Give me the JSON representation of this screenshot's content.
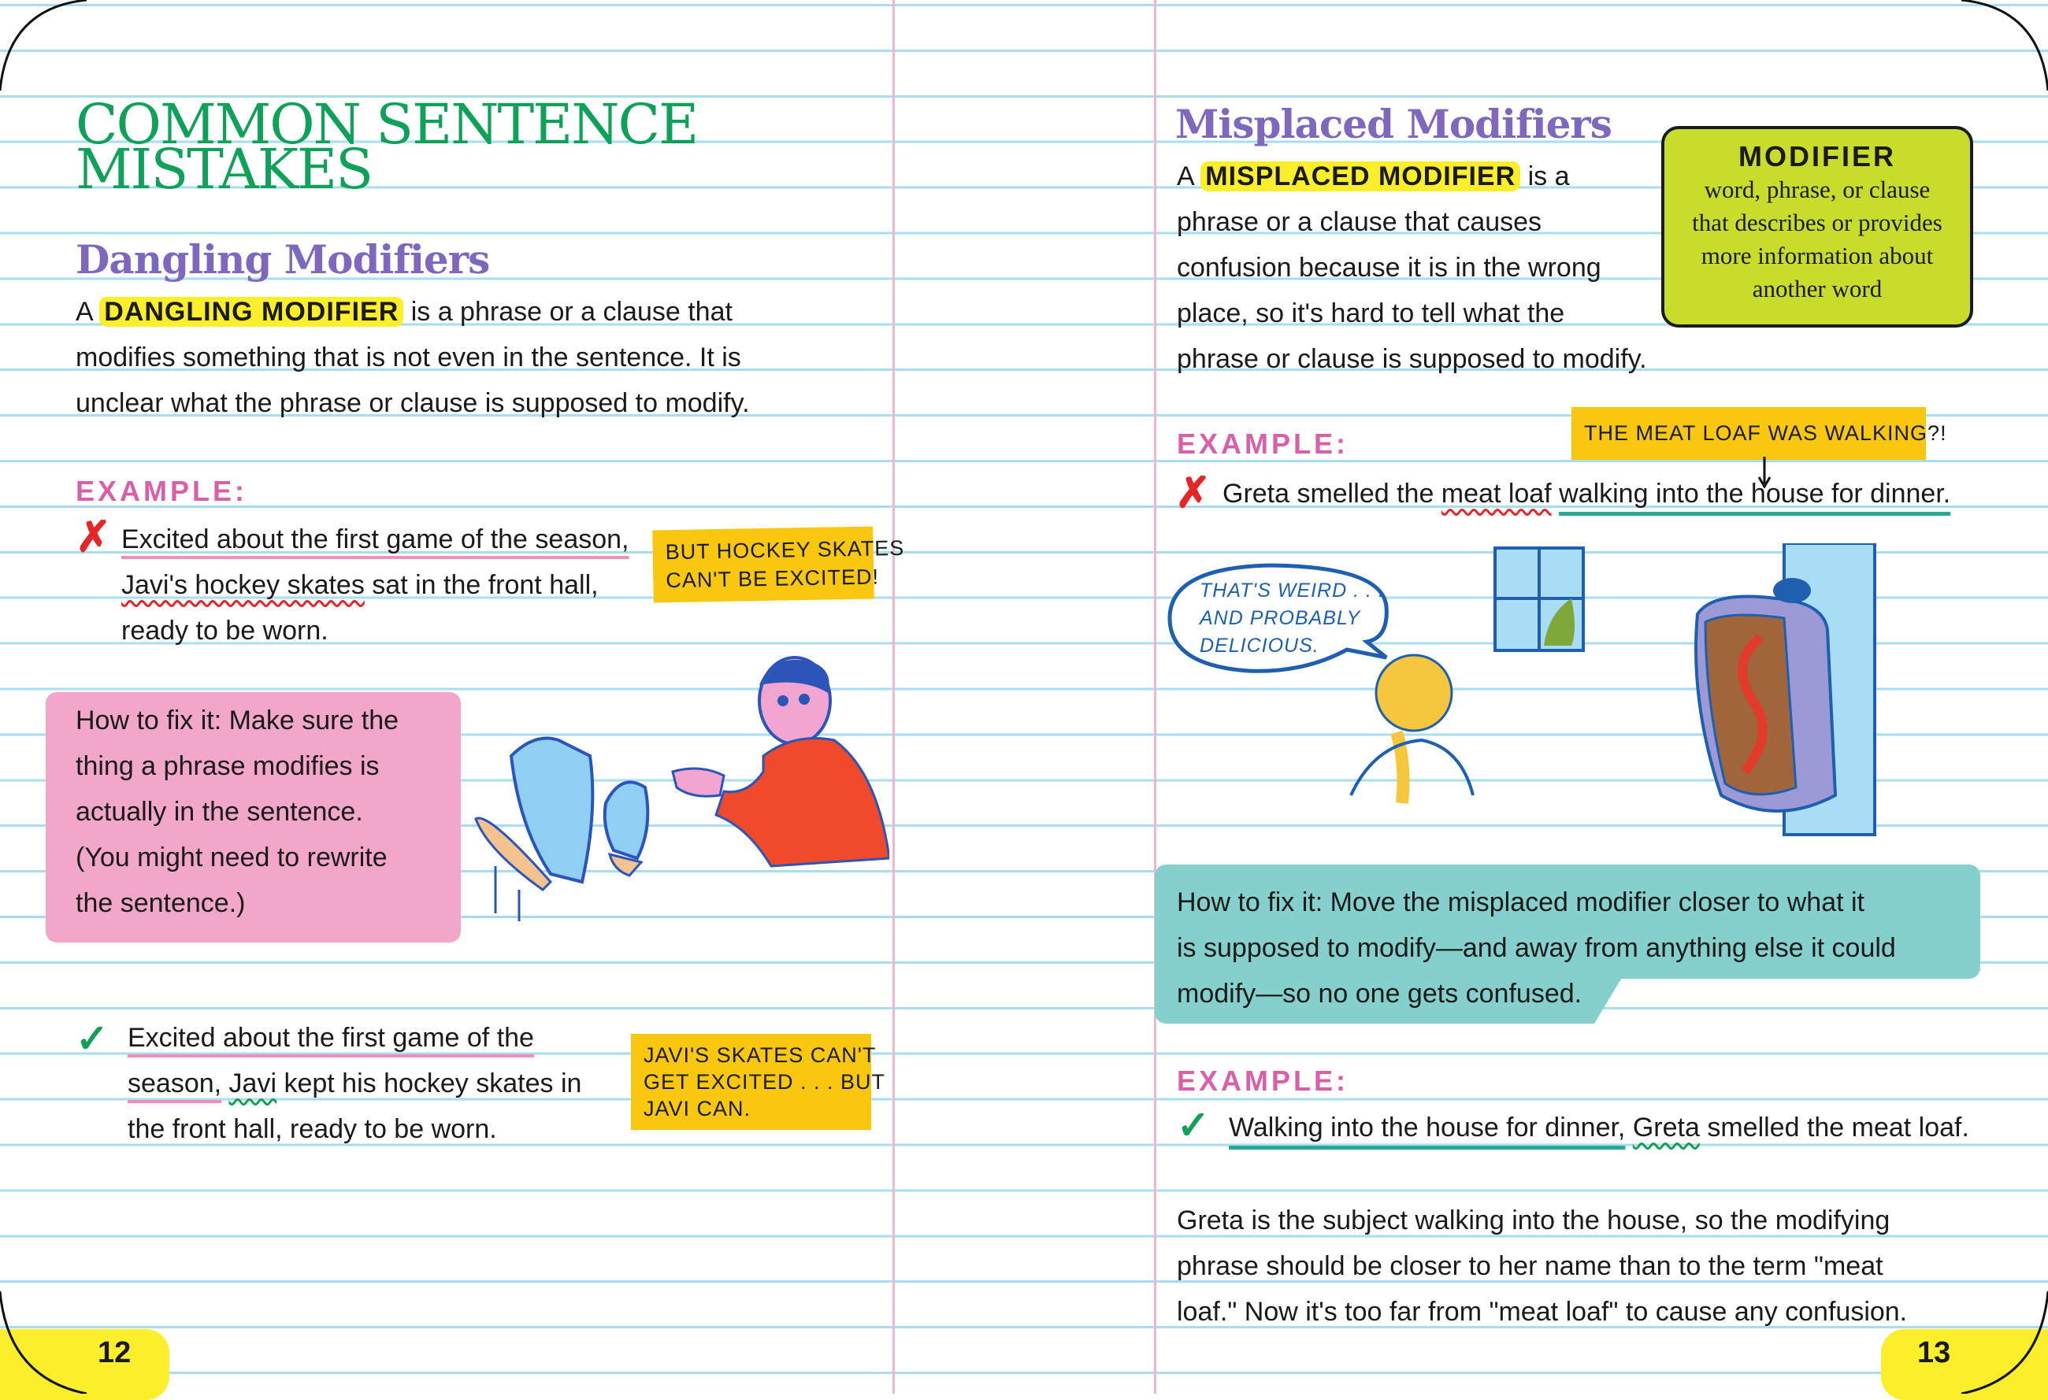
{
  "colors": {
    "title_green": "#0fa15a",
    "heading_purple": "#7d68bd",
    "example_pink": "#d95fa8",
    "note_yellow": "#f9c80e",
    "fix_pink": "#f2a7c9",
    "fix_teal": "#85d0cc",
    "definition_green": "#c8dc2c",
    "highlight": "#fbee2a"
  },
  "left_page": {
    "title_line1": "COMMON SENTENCE",
    "title_line2": "MISTAKES",
    "heading": "Dangling Modifiers",
    "intro": {
      "prefix": "A",
      "term": "DANGLING MODIFIER",
      "line1_rest": "is a phrase or a clause that",
      "line2": "modifies something that is not even in the sentence. It is",
      "line3": "unclear what the phrase or clause is supposed to modify."
    },
    "example_label": "EXAMPLE:",
    "wrong_example": {
      "icon": "x-mark-icon",
      "line1": "Excited about the first game of the season,",
      "line2_subject": "Javi's hockey skates",
      "line2_rest": " sat in the front hall,",
      "line3": "ready to be worn."
    },
    "wrong_note": {
      "line1": "BUT HOCKEY SKATES",
      "line2": "CAN'T BE EXCITED!"
    },
    "fix_box": {
      "lines": [
        "How to fix it: Make sure the",
        "thing a phrase modifies is",
        "actually in the sentence.",
        "(You might need to rewrite",
        "the sentence.)"
      ]
    },
    "right_example": {
      "icon": "check-mark-icon",
      "line1": "Excited about the first game of the",
      "line2_phrase": "season,",
      "line2_subject": "Javi",
      "line2_rest": " kept his hockey skates in",
      "line3": "the front hall, ready to be worn."
    },
    "right_note": {
      "line1": "JAVI'S SKATES CAN'T",
      "line2": "GET EXCITED . . . BUT",
      "line3": "JAVI CAN."
    },
    "page_number": "12"
  },
  "right_page": {
    "heading": "Misplaced Modifiers",
    "intro": {
      "prefix": "A",
      "term": "MISPLACED MODIFIER",
      "line1_rest": "is a",
      "line2": "phrase or a clause that causes",
      "line3": "confusion because it is in the wrong",
      "line4": "place, so it's hard to tell what the",
      "line5": "phrase or clause is supposed to modify."
    },
    "definition": {
      "term": "MODIFIER",
      "lines": [
        "word, phrase, or clause",
        "that describes or provides",
        "more information about",
        "another word"
      ]
    },
    "example_label": "EXAMPLE:",
    "wrong_note": "THE MEAT LOAF WAS WALKING?!",
    "wrong_example": {
      "icon": "x-mark-icon",
      "start": "Greta smelled the ",
      "subject": "meat loaf",
      "gap": " ",
      "phrase": "walking into the house for dinner."
    },
    "speech_bubble": {
      "lines": [
        "THAT'S WEIRD . . .",
        "AND PROBABLY",
        "DELICIOUS."
      ]
    },
    "fix_box": {
      "lines": [
        "How to fix it: Move the misplaced modifier closer to what it",
        "is supposed to modify—and away from anything else it could",
        "modify—so no one gets confused."
      ]
    },
    "example_label_2": "EXAMPLE:",
    "right_example": {
      "icon": "check-mark-icon",
      "phrase": "Walking into the house for dinner,",
      "gap": " ",
      "subject": "Greta",
      "rest": " smelled the meat loaf."
    },
    "explanation": {
      "lines": [
        "Greta is the subject walking into the house, so the modifying",
        "phrase should be closer to her name than to the term \"meat",
        "loaf.\" Now it's too far from \"meat loaf\" to cause any confusion."
      ]
    },
    "page_number": "13"
  }
}
